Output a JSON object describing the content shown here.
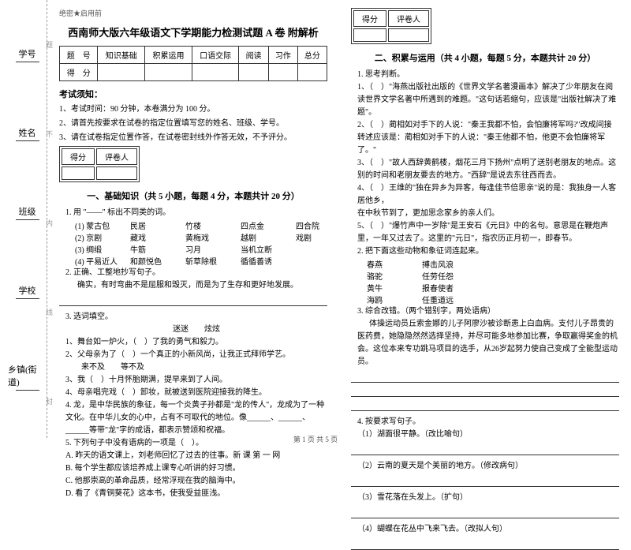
{
  "margin": {
    "items": [
      "学号",
      "姓名",
      "班级",
      "学校",
      "乡镇(街道)"
    ],
    "fold": [
      "题",
      "不",
      "内",
      "线",
      "封"
    ]
  },
  "header": {
    "classification": "绝密★启用前",
    "title": "西南师大版六年级语文下学期能力检测试题 A 卷 附解析"
  },
  "score_table": {
    "headers": [
      "题　号",
      "知识基础",
      "积累运用",
      "口语交际",
      "阅读",
      "习作",
      "总分"
    ],
    "row_label": "得　分"
  },
  "notice": {
    "title": "考试须知：",
    "items": [
      "1、考试时间：90 分钟，本卷满分为 100 分。",
      "2、请首先按要求在试卷的指定位置填写您的姓名、班级、学号。",
      "3、请在试卷指定位置作答，在试卷密封线外作答无效，不予评分。"
    ]
  },
  "scorebox_labels": {
    "score": "得分",
    "reviewer": "评卷人"
  },
  "section1": {
    "title": "一、基础知识（共 5 小题，每题 4 分，本题共计 20 分）",
    "q1": {
      "stem": "1. 用 \"——\" 标出不同类的词。",
      "rows": [
        [
          "(1) 蒙古包",
          "民居",
          "竹楼",
          "四点金",
          "四合院"
        ],
        [
          "(2) 京剧",
          "藏戏",
          "黄梅戏",
          "越剧",
          "戏剧"
        ],
        [
          "(3) 绸缎",
          "牛筋",
          "习月",
          "当机立断",
          ""
        ],
        [
          "(4) 平易近人",
          "和颜悦色",
          "斩草除根",
          "循循善诱",
          ""
        ]
      ]
    },
    "q2": {
      "stem": "2. 正确、工整地抄写句子。",
      "text": "确实，有时弯曲不是屈服和毁灭，而是为了生存和更好地发展。"
    },
    "q3": {
      "stem": "3. 选词填空。",
      "words": "迷迷　　炫炫",
      "items": [
        "1、舞台如一炉火，（　）了我的勇气和毅力。",
        "2、父母亲为了（　）一个真正的小新风尚，让我正式拜师学艺。",
        "　　来不及　　等不及",
        "3、我（　）十月怀胎期满，提早来到了人间。",
        "4、母亲唱完戏（　）卸妆，就被送到医院迎接我的降生。"
      ]
    },
    "q4": "4. 龙，是中华民族的象征，每一个炎黄子孙都是\"龙的传人\"，龙成为了一种文化。在中华儿女的心中，占有不可取代的地位。像______、______、______等带\"龙\"字的成语，都表示赞颂和祝福。",
    "q5": {
      "stem": "5. 下列句子中没有语病的一项是（　）。",
      "opts": [
        "A. 昨天的语文课上，刘老师回忆了过去的往事。新  课   第  一  网",
        "B. 每个学生都应该培养成上课专心听讲的好习惯。",
        "C. 他那崇高的革命品质，经常浮现在我的脑海中。",
        "D. 看了《青铜葵花》这本书，使我受益匪浅。"
      ]
    }
  },
  "section2": {
    "title": "二、积累与运用（共 4 小题，每题 5 分，本题共计 20 分）",
    "q1": {
      "stem": "1. 思考判断。",
      "items": [
        "1、（　）\"海燕出版社出版的《世界文学名著漫画本》解决了少年朋友在阅读世界文学名著中所遇到的难题。\"这句话若缩句，应该是\"出版社解决了难题\"。",
        "2、（　）蔺相如对手下的人说：\"秦王我都不怕，会怕廉将军吗?\"改成间接转述应该是：蔺相如对手下的人说：\"秦王他都不怕，他更不会怕廉将军了。\"",
        "3、（　）\"故人西辞黄鹤楼，烟花三月下扬州\"点明了送别老朋友的地点。这别的时间和老朋友要去的地方。\"西辞\"是说去东往西而去。",
        "4、（　）王维的\"独在异乡为异客，每逢佳节倍思亲\"说的是：我独身一人客居他乡，",
        "在中秋节到了，更加思念家乡的亲人们。",
        "5、（　）\"爆竹声中一岁除\"是王安石《元日》中的名句。意思是在鞭炮声里，一年又过去了。这里的\"元日\"，指农历正月初一，即春节。"
      ]
    },
    "q2": {
      "stem": "2. 把下面这些动物和象征词连起来。",
      "left": [
        "春燕",
        "骆驼",
        "黄牛",
        "海鸥"
      ],
      "right": [
        "搏击风浪",
        "任劳任怨",
        "报春使者",
        "任重道远"
      ]
    },
    "q3": {
      "stem": "3. 综合改错。（两个错别字，两处语病）",
      "text": "体操运动员丘索金娜的儿子阿廖沙被诊断患上白血病。支付儿子昂贵的医药费，她隐隐然然选择坚持，并尽可能多地参加比赛，争取赢得奖金的机会。这位本来专功跳马项目的选手，从26岁起努力使自己变成了全能型运动员。"
    },
    "q4": {
      "stem": "4. 按要求写句子。",
      "items": [
        "（1）湖面很平静。（改比喻句）",
        "（2）云南的夏天是个美丽的地方。（修改病句）",
        "（3）雪花落在头发上。（扩句）",
        "（4）蝴蝶在花丛中飞来飞去。（改拟人句）"
      ]
    }
  },
  "footer": "第 1 页 共 5 页"
}
